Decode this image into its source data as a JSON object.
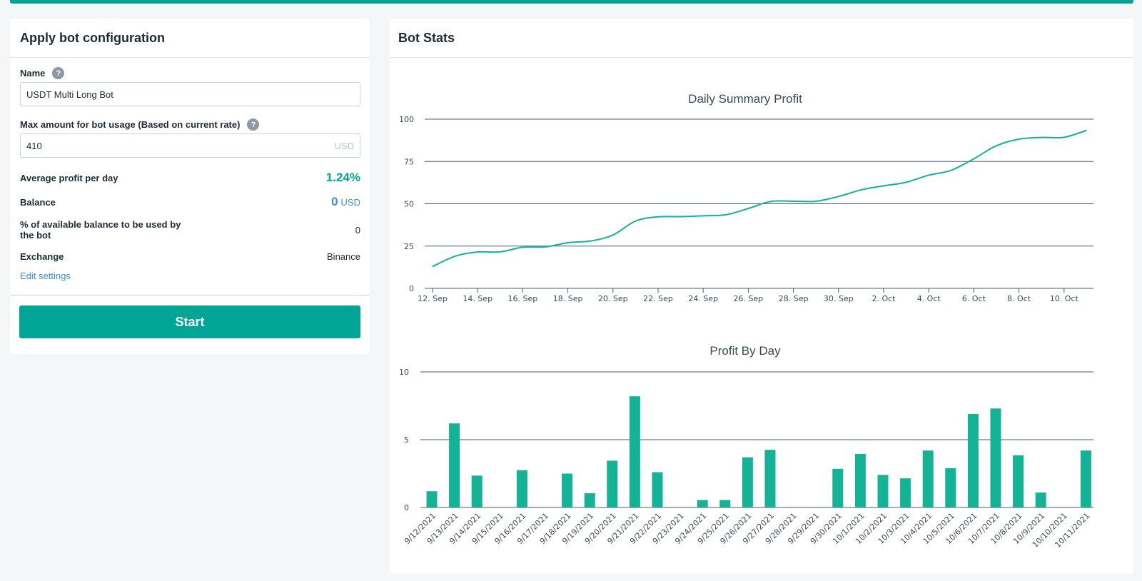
{
  "config": {
    "title": "Apply bot configuration",
    "name_label": "Name",
    "name_value": "USDT Multi Long Bot",
    "max_label": "Max amount for bot usage (Based on current rate)",
    "max_value": "410",
    "max_suffix": "USD",
    "help_glyph": "?",
    "avg_profit_label": "Average profit per day",
    "avg_profit_value": "1.24%",
    "balance_label": "Balance",
    "balance_value": "0",
    "balance_currency": "USD",
    "pct_label": "% of available balance to be used by the bot",
    "pct_value": "0",
    "exchange_label": "Exchange",
    "exchange_value": "Binance",
    "edit_link": "Edit settings",
    "start_label": "Start"
  },
  "stats": {
    "title": "Bot Stats"
  },
  "colors": {
    "accent": "#00a596",
    "series": "#14b395",
    "link": "#3a8fd8"
  },
  "chart_data": [
    {
      "type": "line",
      "title": "Daily Summary Profit",
      "x": [
        "9/12/2021",
        "9/13/2021",
        "9/14/2021",
        "9/15/2021",
        "9/16/2021",
        "9/17/2021",
        "9/18/2021",
        "9/19/2021",
        "9/20/2021",
        "9/21/2021",
        "9/22/2021",
        "9/23/2021",
        "9/24/2021",
        "9/25/2021",
        "9/26/2021",
        "9/27/2021",
        "9/28/2021",
        "9/29/2021",
        "9/30/2021",
        "10/1/2021",
        "10/2/2021",
        "10/3/2021",
        "10/4/2021",
        "10/5/2021",
        "10/6/2021",
        "10/7/2021",
        "10/8/2021",
        "10/9/2021",
        "10/10/2021",
        "10/11/2021"
      ],
      "values": [
        12.9,
        19.0,
        21.5,
        21.6,
        24.3,
        24.5,
        27.0,
        28.0,
        31.5,
        39.8,
        42.3,
        42.4,
        42.9,
        43.5,
        47.2,
        51.4,
        51.5,
        51.5,
        54.3,
        58.2,
        60.6,
        62.7,
        66.9,
        69.8,
        76.6,
        84.3,
        88.2,
        89.2,
        89.3,
        93.4
      ],
      "xticks": [
        "12. Sep",
        "14. Sep",
        "16. Sep",
        "18. Sep",
        "20. Sep",
        "22. Sep",
        "24. Sep",
        "26. Sep",
        "28. Sep",
        "30. Sep",
        "2. Oct",
        "4. Oct",
        "6. Oct",
        "8. Oct",
        "10. Oct"
      ],
      "yticks": [
        "0",
        "25",
        "50",
        "75",
        "100"
      ],
      "ylim": [
        0,
        100
      ],
      "grid": true
    },
    {
      "type": "bar",
      "title": "Profit By Day",
      "categories": [
        "9/12/2021",
        "9/13/2021",
        "9/14/2021",
        "9/15/2021",
        "9/16/2021",
        "9/17/2021",
        "9/18/2021",
        "9/19/2021",
        "9/20/2021",
        "9/21/2021",
        "9/22/2021",
        "9/23/2021",
        "9/24/2021",
        "9/25/2021",
        "9/26/2021",
        "9/27/2021",
        "9/28/2021",
        "9/29/2021",
        "9/30/2021",
        "10/1/2021",
        "10/2/2021",
        "10/3/2021",
        "10/4/2021",
        "10/5/2021",
        "10/6/2021",
        "10/7/2021",
        "10/8/2021",
        "10/9/2021",
        "10/10/2021",
        "10/11/2021"
      ],
      "values": [
        1.2,
        6.2,
        2.35,
        0,
        2.75,
        0,
        2.5,
        1.05,
        3.45,
        8.2,
        2.6,
        0,
        0.55,
        0.55,
        3.7,
        4.25,
        0,
        0,
        2.85,
        3.95,
        2.4,
        2.15,
        4.2,
        2.9,
        6.9,
        7.3,
        3.85,
        1.1,
        0,
        4.2
      ],
      "yticks": [
        "0",
        "5",
        "10"
      ],
      "ylim": [
        0,
        10
      ],
      "grid": true
    }
  ]
}
